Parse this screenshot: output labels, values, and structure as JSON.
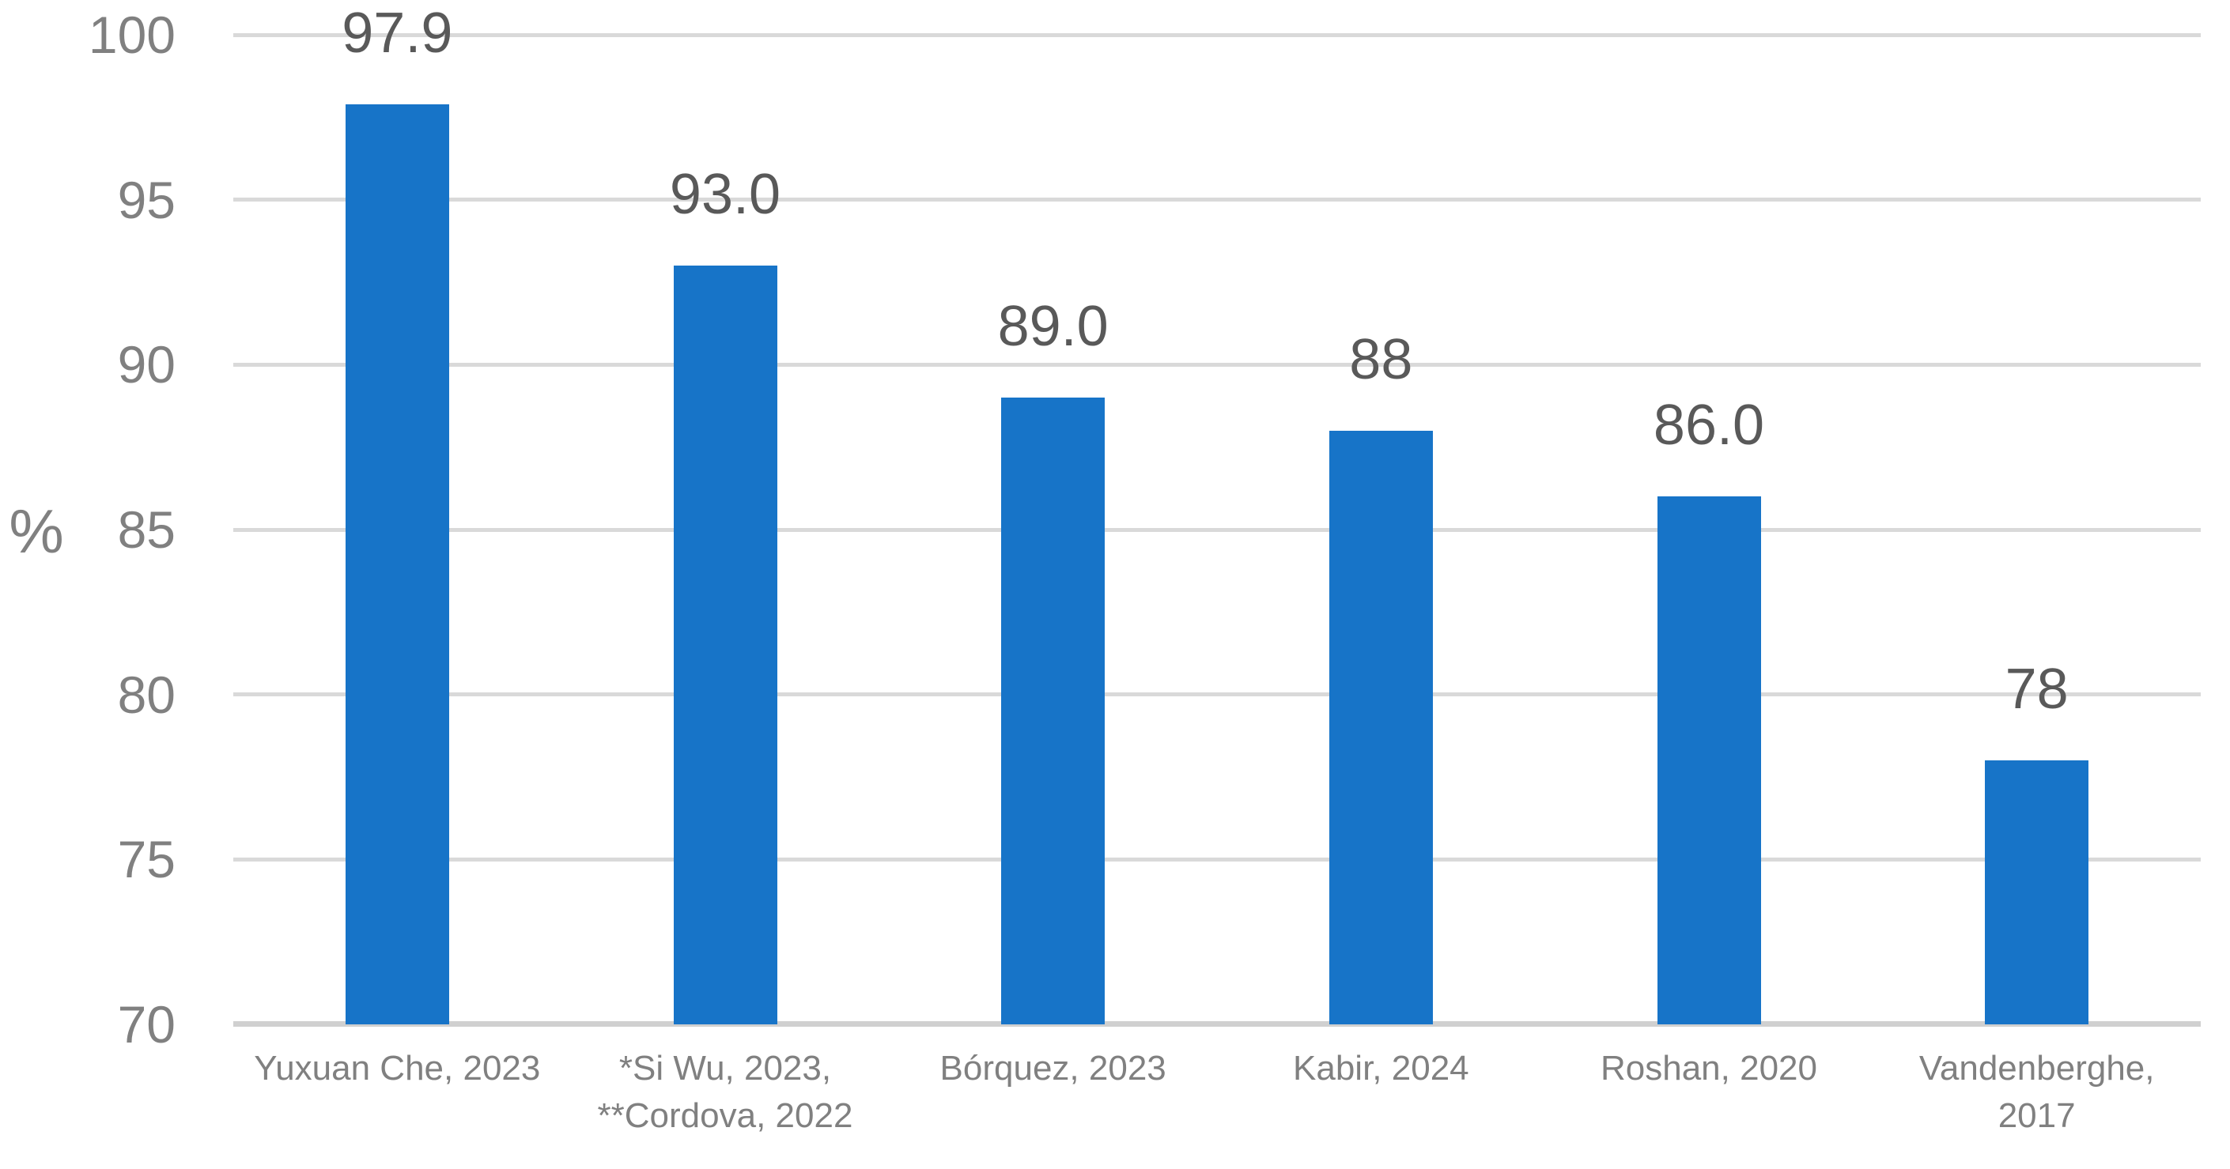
{
  "chart_data": {
    "type": "bar",
    "title": "",
    "categories": [
      "Yuxuan Che, 2023",
      "*Si Wu, 2023,\n**Cordova, 2022",
      "Bórquez, 2023",
      "Kabir, 2024",
      "Roshan, 2020",
      "Vandenberghe,\n2017"
    ],
    "values": [
      97.9,
      93.0,
      89.0,
      88,
      86.0,
      78
    ],
    "data_labels": [
      "97.9",
      "93.0",
      "89.0",
      "88",
      "86.0",
      "78"
    ],
    "xlabel": "",
    "ylabel": "%",
    "ylim": [
      70,
      100
    ],
    "yticks": [
      70,
      75,
      80,
      85,
      90,
      95,
      100
    ],
    "grid": "horizontal",
    "legend": "none",
    "colors": {
      "bar": "#1774c8",
      "gridline": "#d9d9d9",
      "axis_line": "#d0d0d0",
      "tick_label": "#808080",
      "category_label": "#808080",
      "value_label": "#595959",
      "background": "#ffffff"
    }
  }
}
